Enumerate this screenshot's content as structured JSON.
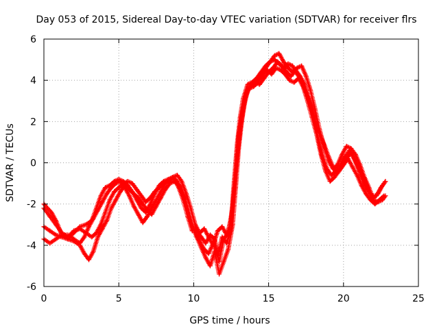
{
  "chart_data": {
    "type": "scatter",
    "title": "Day 053 of 2015, Sidereal Day-to-day VTEC variation (SDTVAR) for receiver flrs",
    "xlabel": "GPS time / hours",
    "ylabel": "SDTVAR / TECUs",
    "xlim": [
      0,
      25
    ],
    "ylim": [
      -6,
      6
    ],
    "xticks": [
      0,
      5,
      10,
      15,
      20,
      25
    ],
    "yticks": [
      -6,
      -4,
      -2,
      0,
      2,
      4,
      6
    ],
    "xtick_labels": [
      "0",
      "5",
      "10",
      "15",
      "20",
      "25"
    ],
    "ytick_labels": [
      "-6",
      "-4",
      "-2",
      "0",
      "2",
      "4",
      "6"
    ],
    "grid": true,
    "marker": "+",
    "color": "#ff0000",
    "series": [
      {
        "name": "track-1",
        "points": [
          [
            0.0,
            -2.0
          ],
          [
            0.5,
            -2.4
          ],
          [
            0.8,
            -2.8
          ],
          [
            1.2,
            -3.5
          ],
          [
            1.6,
            -3.7
          ],
          [
            2.0,
            -3.4
          ],
          [
            2.4,
            -3.1
          ],
          [
            2.8,
            -3.0
          ],
          [
            3.2,
            -2.8
          ],
          [
            3.5,
            -2.2
          ],
          [
            3.8,
            -1.6
          ],
          [
            4.1,
            -1.2
          ],
          [
            4.4,
            -1.1
          ],
          [
            4.7,
            -0.9
          ],
          [
            5.0,
            -0.8
          ],
          [
            5.3,
            -0.9
          ],
          [
            5.6,
            -1.1
          ],
          [
            5.9,
            -1.4
          ],
          [
            6.2,
            -1.8
          ],
          [
            6.5,
            -2.2
          ],
          [
            6.8,
            -2.4
          ],
          [
            7.1,
            -2.0
          ],
          [
            7.4,
            -1.5
          ],
          [
            7.7,
            -1.1
          ],
          [
            8.0,
            -0.9
          ],
          [
            8.3,
            -0.8
          ],
          [
            8.6,
            -0.7
          ],
          [
            8.9,
            -0.9
          ],
          [
            9.2,
            -1.3
          ],
          [
            9.5,
            -2.0
          ],
          [
            9.8,
            -2.8
          ],
          [
            10.1,
            -3.4
          ],
          [
            10.4,
            -3.8
          ],
          [
            10.7,
            -4.2
          ],
          [
            11.0,
            -4.4
          ],
          [
            11.3,
            -3.9
          ],
          [
            11.6,
            -4.5
          ],
          [
            11.9,
            -3.6
          ],
          [
            12.2,
            -3.9
          ],
          [
            12.5,
            -3.2
          ],
          [
            12.7,
            -1.5
          ],
          [
            12.9,
            0.3
          ],
          [
            13.1,
            1.6
          ],
          [
            13.3,
            2.6
          ],
          [
            13.5,
            3.4
          ],
          [
            13.8,
            3.7
          ],
          [
            14.1,
            3.9
          ],
          [
            14.4,
            3.8
          ],
          [
            14.7,
            4.1
          ],
          [
            15.0,
            4.4
          ],
          [
            15.3,
            4.6
          ],
          [
            15.6,
            4.9
          ],
          [
            15.9,
            4.7
          ],
          [
            16.2,
            4.4
          ],
          [
            16.5,
            4.2
          ],
          [
            16.8,
            4.5
          ],
          [
            17.1,
            4.2
          ],
          [
            17.4,
            3.8
          ],
          [
            17.7,
            3.1
          ],
          [
            18.0,
            2.3
          ],
          [
            18.3,
            1.2
          ],
          [
            18.6,
            0.3
          ],
          [
            18.9,
            -0.3
          ],
          [
            19.2,
            -0.6
          ],
          [
            19.5,
            -0.4
          ],
          [
            19.8,
            -0.1
          ],
          [
            20.1,
            0.3
          ],
          [
            20.4,
            0.6
          ],
          [
            20.7,
            0.2
          ],
          [
            21.0,
            -0.3
          ],
          [
            21.3,
            -0.9
          ],
          [
            21.6,
            -1.3
          ],
          [
            21.9,
            -1.6
          ],
          [
            22.2,
            -1.6
          ],
          [
            22.5,
            -1.2
          ],
          [
            22.8,
            -0.9
          ]
        ]
      },
      {
        "name": "track-2",
        "points": [
          [
            0.0,
            -3.1
          ],
          [
            0.4,
            -3.3
          ],
          [
            0.8,
            -3.5
          ],
          [
            1.2,
            -3.6
          ],
          [
            1.6,
            -3.7
          ],
          [
            2.0,
            -3.8
          ],
          [
            2.4,
            -4.0
          ],
          [
            2.7,
            -4.4
          ],
          [
            3.0,
            -4.7
          ],
          [
            3.3,
            -4.3
          ],
          [
            3.6,
            -3.6
          ],
          [
            3.9,
            -3.2
          ],
          [
            4.2,
            -2.8
          ],
          [
            4.5,
            -2.2
          ],
          [
            4.8,
            -1.8
          ],
          [
            5.1,
            -1.4
          ],
          [
            5.4,
            -1.1
          ],
          [
            5.7,
            -1.3
          ],
          [
            6.0,
            -1.5
          ],
          [
            6.3,
            -1.7
          ],
          [
            6.6,
            -2.0
          ],
          [
            6.9,
            -2.3
          ],
          [
            7.2,
            -2.5
          ],
          [
            7.5,
            -2.1
          ],
          [
            7.8,
            -1.7
          ],
          [
            8.1,
            -1.3
          ],
          [
            8.4,
            -1.0
          ],
          [
            8.7,
            -0.9
          ],
          [
            9.0,
            -1.1
          ],
          [
            9.3,
            -1.6
          ],
          [
            9.6,
            -2.2
          ],
          [
            9.9,
            -3.0
          ],
          [
            10.2,
            -3.6
          ],
          [
            10.5,
            -4.1
          ],
          [
            10.8,
            -4.6
          ],
          [
            11.1,
            -5.0
          ],
          [
            11.4,
            -4.3
          ],
          [
            11.7,
            -5.4
          ],
          [
            12.0,
            -4.8
          ],
          [
            12.3,
            -4.2
          ],
          [
            12.6,
            -3.0
          ],
          [
            12.8,
            -1.2
          ],
          [
            13.0,
            0.7
          ],
          [
            13.2,
            2.0
          ],
          [
            13.4,
            2.9
          ],
          [
            13.6,
            3.5
          ],
          [
            13.9,
            3.9
          ],
          [
            14.2,
            4.0
          ],
          [
            14.5,
            4.2
          ],
          [
            14.8,
            4.6
          ],
          [
            15.1,
            4.9
          ],
          [
            15.4,
            5.2
          ],
          [
            15.7,
            5.3
          ],
          [
            16.0,
            4.9
          ],
          [
            16.3,
            4.6
          ],
          [
            16.6,
            4.4
          ],
          [
            16.9,
            4.6
          ],
          [
            17.2,
            4.7
          ],
          [
            17.5,
            4.2
          ],
          [
            17.8,
            3.5
          ],
          [
            18.1,
            2.6
          ],
          [
            18.4,
            1.6
          ],
          [
            18.7,
            0.8
          ],
          [
            19.0,
            0.1
          ],
          [
            19.3,
            -0.3
          ],
          [
            19.6,
            -0.1
          ],
          [
            19.9,
            0.4
          ],
          [
            20.2,
            0.8
          ],
          [
            20.5,
            0.7
          ],
          [
            20.8,
            0.4
          ],
          [
            21.1,
            -0.1
          ],
          [
            21.4,
            -0.7
          ],
          [
            21.7,
            -1.2
          ],
          [
            22.0,
            -1.8
          ],
          [
            22.3,
            -1.9
          ],
          [
            22.6,
            -1.8
          ],
          [
            22.8,
            -1.6
          ]
        ]
      },
      {
        "name": "track-3",
        "points": [
          [
            0.0,
            -3.7
          ],
          [
            0.4,
            -3.9
          ],
          [
            0.8,
            -3.7
          ],
          [
            1.2,
            -3.5
          ],
          [
            1.6,
            -3.5
          ],
          [
            2.0,
            -3.7
          ],
          [
            2.4,
            -3.9
          ],
          [
            2.7,
            -3.6
          ],
          [
            3.0,
            -3.1
          ],
          [
            3.3,
            -2.7
          ],
          [
            3.6,
            -2.3
          ],
          [
            3.9,
            -1.9
          ],
          [
            4.2,
            -1.5
          ],
          [
            4.5,
            -1.2
          ],
          [
            4.8,
            -1.0
          ],
          [
            5.1,
            -0.9
          ],
          [
            5.4,
            -1.2
          ],
          [
            5.7,
            -1.6
          ],
          [
            6.0,
            -2.1
          ],
          [
            6.3,
            -2.5
          ],
          [
            6.6,
            -2.9
          ],
          [
            6.9,
            -2.6
          ],
          [
            7.2,
            -2.2
          ],
          [
            7.5,
            -1.8
          ],
          [
            7.8,
            -1.4
          ],
          [
            8.1,
            -1.0
          ],
          [
            8.4,
            -0.8
          ],
          [
            8.7,
            -0.8
          ],
          [
            9.0,
            -1.2
          ],
          [
            9.3,
            -1.8
          ],
          [
            9.6,
            -2.6
          ],
          [
            9.9,
            -3.3
          ],
          [
            10.2,
            -3.3
          ],
          [
            10.5,
            -3.6
          ],
          [
            10.8,
            -3.9
          ],
          [
            11.1,
            -3.5
          ],
          [
            11.4,
            -3.7
          ],
          [
            11.7,
            -4.8
          ],
          [
            12.0,
            -3.7
          ],
          [
            12.3,
            -3.4
          ],
          [
            12.6,
            -2.2
          ],
          [
            12.8,
            -0.4
          ],
          [
            13.0,
            1.3
          ],
          [
            13.2,
            2.3
          ],
          [
            13.4,
            3.1
          ],
          [
            13.7,
            3.6
          ],
          [
            14.0,
            3.7
          ],
          [
            14.3,
            3.9
          ],
          [
            14.6,
            4.3
          ],
          [
            14.9,
            4.5
          ],
          [
            15.2,
            4.3
          ],
          [
            15.5,
            4.6
          ],
          [
            15.8,
            4.5
          ],
          [
            16.1,
            4.3
          ],
          [
            16.4,
            4.0
          ],
          [
            16.7,
            3.9
          ],
          [
            17.0,
            4.1
          ],
          [
            17.3,
            3.7
          ],
          [
            17.6,
            3.0
          ],
          [
            17.9,
            2.2
          ],
          [
            18.2,
            1.4
          ],
          [
            18.5,
            0.4
          ],
          [
            18.8,
            -0.4
          ],
          [
            19.1,
            -0.9
          ],
          [
            19.4,
            -0.7
          ],
          [
            19.7,
            -0.4
          ],
          [
            20.0,
            -0.1
          ],
          [
            20.3,
            0.2
          ],
          [
            20.6,
            -0.2
          ],
          [
            20.9,
            -0.6
          ],
          [
            21.2,
            -1.1
          ],
          [
            21.5,
            -1.5
          ],
          [
            21.8,
            -1.8
          ],
          [
            22.1,
            -2.0
          ],
          [
            22.4,
            -1.8
          ],
          [
            22.7,
            -1.6
          ]
        ]
      },
      {
        "name": "track-4",
        "points": [
          [
            0.0,
            -2.2
          ],
          [
            0.4,
            -2.6
          ],
          [
            0.8,
            -3.0
          ],
          [
            1.2,
            -3.4
          ],
          [
            1.6,
            -3.6
          ],
          [
            2.0,
            -3.3
          ],
          [
            2.4,
            -3.2
          ],
          [
            2.8,
            -3.4
          ],
          [
            3.2,
            -3.6
          ],
          [
            3.5,
            -3.4
          ],
          [
            3.8,
            -3.0
          ],
          [
            4.1,
            -2.4
          ],
          [
            4.4,
            -1.8
          ],
          [
            4.7,
            -1.4
          ],
          [
            5.0,
            -1.2
          ],
          [
            5.3,
            -1.0
          ],
          [
            5.6,
            -0.9
          ],
          [
            5.9,
            -1.0
          ],
          [
            6.2,
            -1.3
          ],
          [
            6.5,
            -1.6
          ],
          [
            6.8,
            -1.9
          ],
          [
            7.1,
            -1.7
          ],
          [
            7.4,
            -1.4
          ],
          [
            7.7,
            -1.2
          ],
          [
            8.0,
            -1.0
          ],
          [
            8.3,
            -0.9
          ],
          [
            8.6,
            -0.7
          ],
          [
            8.9,
            -0.6
          ],
          [
            9.2,
            -0.9
          ],
          [
            9.5,
            -1.5
          ],
          [
            9.8,
            -2.2
          ],
          [
            10.1,
            -3.0
          ],
          [
            10.4,
            -3.4
          ],
          [
            10.7,
            -3.2
          ],
          [
            11.0,
            -3.6
          ],
          [
            11.3,
            -4.0
          ],
          [
            11.6,
            -3.3
          ],
          [
            11.9,
            -3.1
          ],
          [
            12.2,
            -3.5
          ],
          [
            12.5,
            -2.8
          ],
          [
            12.7,
            -0.9
          ],
          [
            12.9,
            0.9
          ],
          [
            13.1,
            2.2
          ],
          [
            13.3,
            3.1
          ],
          [
            13.6,
            3.8
          ],
          [
            13.9,
            3.9
          ],
          [
            14.2,
            4.1
          ],
          [
            14.5,
            4.4
          ],
          [
            14.8,
            4.7
          ],
          [
            15.1,
            4.9
          ],
          [
            15.4,
            5.0
          ],
          [
            15.7,
            4.8
          ],
          [
            16.0,
            4.6
          ],
          [
            16.3,
            4.8
          ],
          [
            16.6,
            4.7
          ],
          [
            16.9,
            4.3
          ],
          [
            17.2,
            4.0
          ],
          [
            17.5,
            3.4
          ],
          [
            17.8,
            2.8
          ],
          [
            18.1,
            2.0
          ],
          [
            18.4,
            1.4
          ],
          [
            18.7,
            0.9
          ],
          [
            19.0,
            0.3
          ],
          [
            19.3,
            -0.2
          ],
          [
            19.6,
            -0.5
          ],
          [
            19.9,
            -0.2
          ],
          [
            20.2,
            0.2
          ],
          [
            20.5,
            0.5
          ],
          [
            20.8,
            0.1
          ],
          [
            21.1,
            -0.4
          ],
          [
            21.4,
            -0.8
          ],
          [
            21.7,
            -1.4
          ],
          [
            22.0,
            -1.7
          ],
          [
            22.3,
            -1.5
          ],
          [
            22.6,
            -1.1
          ],
          [
            22.8,
            -0.9
          ]
        ]
      }
    ]
  }
}
